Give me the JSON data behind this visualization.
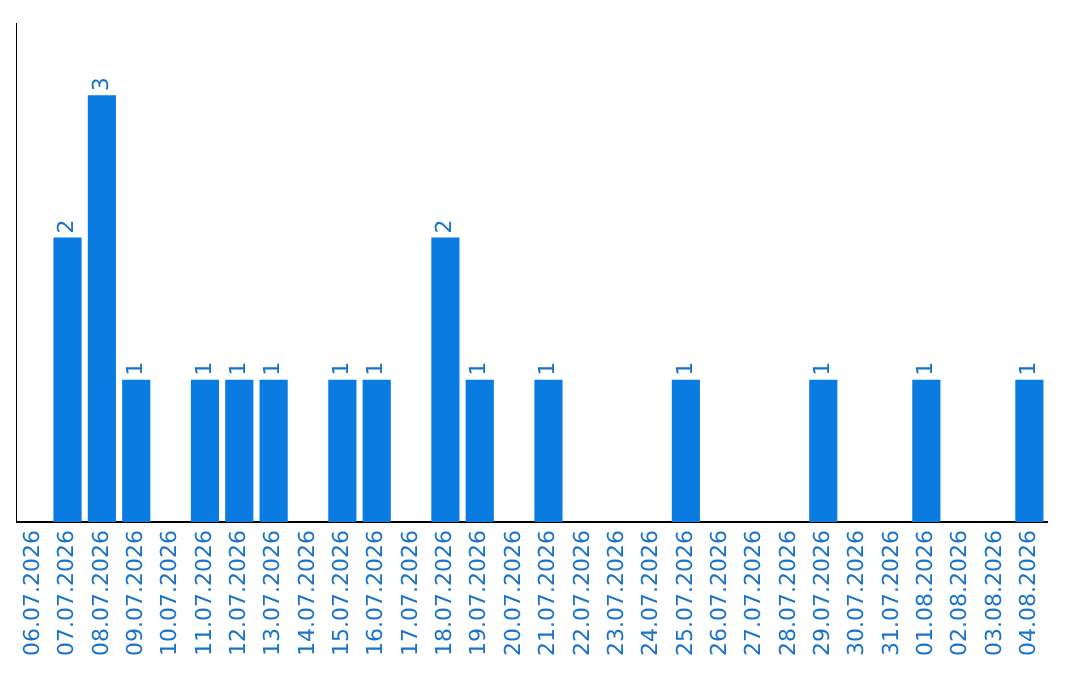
{
  "chart_data": {
    "type": "bar",
    "categories": [
      "06.07.2026",
      "07.07.2026",
      "08.07.2026",
      "09.07.2026",
      "10.07.2026",
      "11.07.2026",
      "12.07.2026",
      "13.07.2026",
      "14.07.2026",
      "15.07.2026",
      "16.07.2026",
      "17.07.2026",
      "18.07.2026",
      "19.07.2026",
      "20.07.2026",
      "21.07.2026",
      "22.07.2026",
      "23.07.2026",
      "24.07.2026",
      "25.07.2026",
      "26.07.2026",
      "27.07.2026",
      "28.07.2026",
      "29.07.2026",
      "30.07.2026",
      "31.07.2026",
      "01.08.2026",
      "02.08.2026",
      "03.08.2026",
      "04.08.2026"
    ],
    "values": [
      0,
      2,
      3,
      1,
      0,
      1,
      1,
      1,
      0,
      1,
      1,
      0,
      2,
      1,
      0,
      1,
      0,
      0,
      0,
      1,
      0,
      0,
      0,
      1,
      0,
      0,
      1,
      0,
      0,
      1
    ],
    "value_labels": [
      null,
      "2",
      "3",
      "1",
      null,
      "1",
      "1",
      "1",
      null,
      "1",
      "1",
      null,
      "2",
      "1",
      null,
      "1",
      null,
      null,
      null,
      "1",
      null,
      null,
      null,
      "1",
      null,
      null,
      "1",
      null,
      null,
      "1"
    ],
    "color": "#0a7be0",
    "grid": false,
    "legend": false
  }
}
